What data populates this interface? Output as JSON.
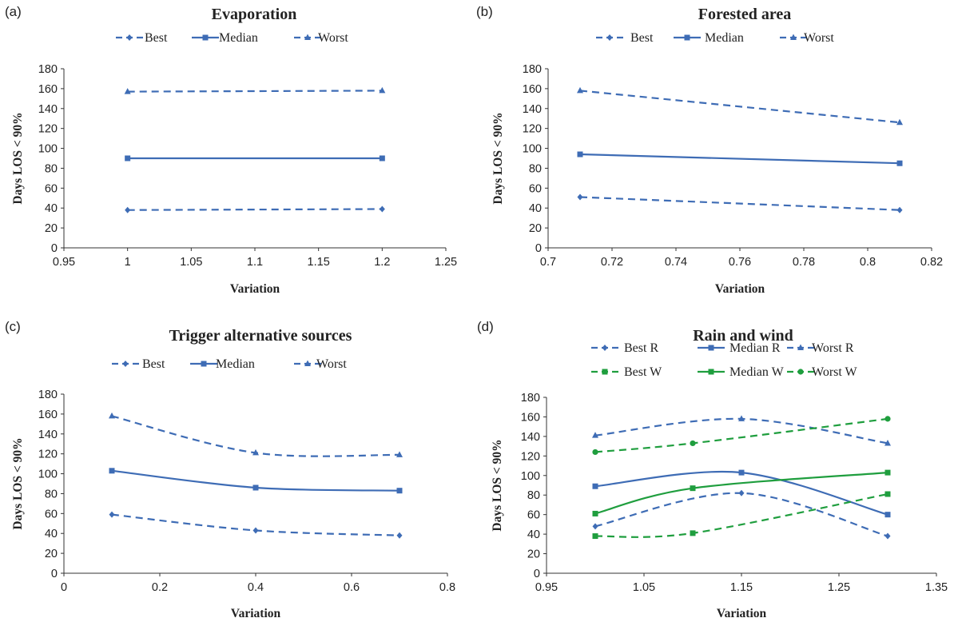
{
  "chart_data": [
    {
      "panel": "(a)",
      "type": "line",
      "title": "Evaporation",
      "xlabel": "Variation",
      "ylabel": "Days LOS < 90%",
      "xlim": [
        0.95,
        1.25
      ],
      "ylim": [
        0,
        180
      ],
      "xticks": [
        "0.95",
        "1",
        "1.05",
        "1.1",
        "1.15",
        "1.2",
        "1.25"
      ],
      "yticks": [
        "0",
        "20",
        "40",
        "60",
        "80",
        "100",
        "120",
        "140",
        "160",
        "180"
      ],
      "legend": "top",
      "series": [
        {
          "name": "Best",
          "x": [
            1.0,
            1.2
          ],
          "values": [
            38,
            39
          ],
          "style": "dashed",
          "marker": "diamond",
          "color": "#3e6cb5"
        },
        {
          "name": "Median",
          "x": [
            1.0,
            1.2
          ],
          "values": [
            90,
            90
          ],
          "style": "solid",
          "marker": "square",
          "color": "#3e6cb5"
        },
        {
          "name": "Worst",
          "x": [
            1.0,
            1.2
          ],
          "values": [
            157,
            158
          ],
          "style": "dashed",
          "marker": "triangle",
          "color": "#3e6cb5"
        }
      ]
    },
    {
      "panel": "(b)",
      "type": "line",
      "title": "Forested area",
      "xlabel": "Variation",
      "ylabel": "Days LOS < 90%",
      "xlim": [
        0.7,
        0.82
      ],
      "ylim": [
        0,
        180
      ],
      "xticks": [
        "0.7",
        "0.72",
        "0.74",
        "0.76",
        "0.78",
        "0.8",
        "0.82"
      ],
      "yticks": [
        "0",
        "20",
        "40",
        "60",
        "80",
        "100",
        "120",
        "140",
        "160",
        "180"
      ],
      "legend": "top",
      "series": [
        {
          "name": "Best",
          "x": [
            0.71,
            0.81
          ],
          "values": [
            51,
            38
          ],
          "style": "dashed",
          "marker": "diamond",
          "color": "#3e6cb5"
        },
        {
          "name": "Median",
          "x": [
            0.71,
            0.81
          ],
          "values": [
            94,
            85
          ],
          "style": "solid",
          "marker": "square",
          "color": "#3e6cb5"
        },
        {
          "name": "Worst",
          "x": [
            0.71,
            0.81
          ],
          "values": [
            158,
            126
          ],
          "style": "dashed",
          "marker": "triangle",
          "color": "#3e6cb5"
        }
      ]
    },
    {
      "panel": "(c)",
      "type": "line",
      "title": "Trigger alternative sources",
      "xlabel": "Variation",
      "ylabel": "Days LOS < 90%",
      "xlim": [
        0,
        0.8
      ],
      "ylim": [
        0,
        180
      ],
      "xticks": [
        "0",
        "0.2",
        "0.4",
        "0.6",
        "0.8"
      ],
      "yticks": [
        "0",
        "20",
        "40",
        "60",
        "80",
        "100",
        "120",
        "140",
        "160",
        "180"
      ],
      "legend": "top",
      "series": [
        {
          "name": "Best",
          "x": [
            0.1,
            0.4,
            0.7
          ],
          "values": [
            59,
            43,
            38
          ],
          "style": "dashed",
          "marker": "diamond",
          "color": "#3e6cb5"
        },
        {
          "name": "Median",
          "x": [
            0.1,
            0.4,
            0.7
          ],
          "values": [
            103,
            86,
            83
          ],
          "style": "solid",
          "marker": "square",
          "color": "#3e6cb5"
        },
        {
          "name": "Worst",
          "x": [
            0.1,
            0.4,
            0.7
          ],
          "values": [
            158,
            121,
            119
          ],
          "style": "dashed",
          "marker": "triangle",
          "color": "#3e6cb5"
        }
      ]
    },
    {
      "panel": "(d)",
      "type": "line",
      "title": "Rain and wind",
      "xlabel": "Variation",
      "ylabel": "Days LOS < 90%",
      "xlim": [
        0.95,
        1.35
      ],
      "ylim": [
        0,
        180
      ],
      "xticks": [
        "0.95",
        "1.05",
        "1.15",
        "1.25",
        "1.35"
      ],
      "yticks": [
        "0",
        "20",
        "40",
        "60",
        "80",
        "100",
        "120",
        "140",
        "160",
        "180"
      ],
      "legend": "top",
      "series": [
        {
          "name": "Best R",
          "x": [
            1.0,
            1.15,
            1.3
          ],
          "values": [
            48,
            82,
            38
          ],
          "style": "dashed",
          "marker": "diamond",
          "color": "#3e6cb5"
        },
        {
          "name": "Median R",
          "x": [
            1.0,
            1.15,
            1.3
          ],
          "values": [
            89,
            103,
            60
          ],
          "style": "solid",
          "marker": "square",
          "color": "#3e6cb5"
        },
        {
          "name": "Worst R",
          "x": [
            1.0,
            1.15,
            1.3
          ],
          "values": [
            141,
            158,
            133
          ],
          "style": "dashed",
          "marker": "triangle",
          "color": "#3e6cb5"
        },
        {
          "name": "Best W",
          "x": [
            1.0,
            1.1,
            1.3
          ],
          "values": [
            38,
            41,
            81
          ],
          "style": "dashed",
          "marker": "square",
          "color": "#1f9e3e"
        },
        {
          "name": "Median W",
          "x": [
            1.0,
            1.1,
            1.3
          ],
          "values": [
            61,
            87,
            103
          ],
          "style": "solid",
          "marker": "square",
          "color": "#1f9e3e"
        },
        {
          "name": "Worst W",
          "x": [
            1.0,
            1.1,
            1.3
          ],
          "values": [
            124,
            133,
            158
          ],
          "style": "dashed",
          "marker": "circle",
          "color": "#1f9e3e"
        }
      ]
    }
  ]
}
